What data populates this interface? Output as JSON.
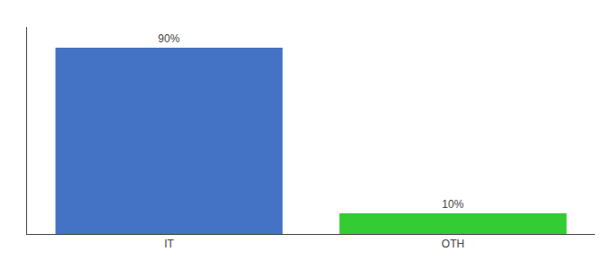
{
  "chart_data": {
    "type": "bar",
    "categories": [
      "IT",
      "OTH"
    ],
    "values": [
      90,
      10
    ],
    "value_labels": [
      "90%",
      "10%"
    ],
    "colors": [
      "#4472c4",
      "#33cc33"
    ],
    "ylim": [
      0,
      100
    ],
    "data_labels": true,
    "tick_labels": "x",
    "grid": false
  }
}
